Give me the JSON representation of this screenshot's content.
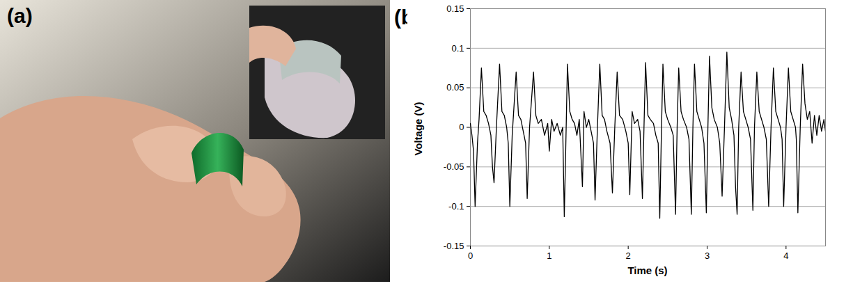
{
  "photo": {
    "label": "(a)"
  },
  "chart_data": {
    "label": "(b)",
    "type": "line",
    "x_label": "Time (s)",
    "y_label": "Voltage (V)",
    "x": [
      0,
      0.02,
      0.04,
      0.06,
      0.09,
      0.11,
      0.14,
      0.17,
      0.2,
      0.23,
      0.26,
      0.28,
      0.3,
      0.33,
      0.37,
      0.4,
      0.43,
      0.46,
      0.48,
      0.5,
      0.53,
      0.58,
      0.61,
      0.64,
      0.67,
      0.7,
      0.72,
      0.75,
      0.8,
      0.83,
      0.86,
      0.9,
      0.94,
      0.98,
      1,
      1.03,
      1.06,
      1.1,
      1.14,
      1.17,
      1.19,
      1.21,
      1.23,
      1.26,
      1.29,
      1.32,
      1.35,
      1.38,
      1.42,
      1.44,
      1.47,
      1.5,
      1.54,
      1.56,
      1.58,
      1.61,
      1.64,
      1.67,
      1.7,
      1.73,
      1.77,
      1.8,
      1.83,
      1.86,
      1.89,
      1.93,
      1.97,
      2,
      2.02,
      2.05,
      2.08,
      2.12,
      2.15,
      2.18,
      2.2,
      2.22,
      2.25,
      2.28,
      2.32,
      2.35,
      2.38,
      2.4,
      2.42,
      2.44,
      2.47,
      2.5,
      2.54,
      2.57,
      2.6,
      2.62,
      2.64,
      2.67,
      2.7,
      2.74,
      2.77,
      2.8,
      2.82,
      2.84,
      2.87,
      2.9,
      2.93,
      2.96,
      2.99,
      3.01,
      3.03,
      3.06,
      3.09,
      3.13,
      3.16,
      3.19,
      3.22,
      3.25,
      3.28,
      3.31,
      3.34,
      3.36,
      3.38,
      3.4,
      3.43,
      3.46,
      3.49,
      3.52,
      3.55,
      3.58,
      3.6,
      3.63,
      3.66,
      3.69,
      3.72,
      3.75,
      3.78,
      3.81,
      3.84,
      3.87,
      3.9,
      3.93,
      3.95,
      3.97,
      4,
      4.03,
      4.06,
      4.09,
      4.12,
      4.13,
      4.15,
      4.18,
      4.21,
      4.24,
      4.27,
      4.3,
      4.33,
      4.36,
      4.39,
      4.42,
      4.45,
      4.48,
      4.5
    ],
    "values": [
      0.005,
      -0.01,
      -0.03,
      -0.1,
      -0.02,
      0.01,
      0.075,
      0.02,
      0.015,
      0.005,
      -0.01,
      -0.05,
      -0.07,
      0,
      0.08,
      0.02,
      0.015,
      0,
      -0.02,
      -0.1,
      -0.01,
      0.07,
      0.015,
      0.01,
      -0.005,
      -0.02,
      -0.09,
      0,
      0.07,
      0.015,
      0.005,
      0.01,
      -0.01,
      0.005,
      -0.03,
      0.01,
      -0.005,
      0.005,
      -0.01,
      0,
      -0.113,
      -0.02,
      0.08,
      0.02,
      0.01,
      0.005,
      -0.01,
      0.01,
      -0.075,
      0.02,
      0,
      0.01,
      -0.01,
      -0.02,
      -0.092,
      0,
      0.08,
      0.015,
      0.01,
      -0.005,
      -0.02,
      -0.083,
      0,
      0.07,
      0.015,
      0.01,
      -0.005,
      -0.02,
      -0.085,
      0.02,
      0.005,
      0.01,
      -0.005,
      -0.09,
      0,
      0.082,
      0.015,
      0.01,
      0.005,
      -0.01,
      -0.02,
      -0.115,
      -0.01,
      0.08,
      0.02,
      0.01,
      0,
      -0.01,
      -0.11,
      0,
      0.075,
      0.02,
      0.01,
      0,
      -0.015,
      -0.11,
      0,
      0.08,
      0.02,
      0.01,
      0,
      -0.02,
      -0.108,
      0,
      0.09,
      0.025,
      0.01,
      0,
      -0.02,
      -0.087,
      0,
      0.095,
      0.025,
      0.01,
      -0.01,
      -0.075,
      -0.11,
      0,
      0.07,
      0.02,
      0.01,
      0,
      -0.015,
      -0.105,
      0,
      0.07,
      0.02,
      0.01,
      0,
      -0.015,
      -0.1,
      0,
      0.075,
      0.02,
      0.01,
      0,
      -0.015,
      -0.1,
      0,
      0.075,
      0.02,
      0.01,
      0,
      -0.015,
      -0.108,
      0,
      0.08,
      0.03,
      0.01,
      0.02,
      -0.02,
      0.015,
      -0.01,
      0.015,
      -0.005,
      0.01,
      -0.005
    ],
    "color": "#000000",
    "xlim": [
      0,
      4.5
    ],
    "xticks": [
      0,
      1,
      2,
      3,
      4
    ],
    "ylim": [
      -0.15,
      0.15
    ],
    "yticks": [
      -0.15,
      -0.1,
      -0.05,
      0,
      0.05,
      0.1,
      0.15
    ],
    "grid": true
  }
}
